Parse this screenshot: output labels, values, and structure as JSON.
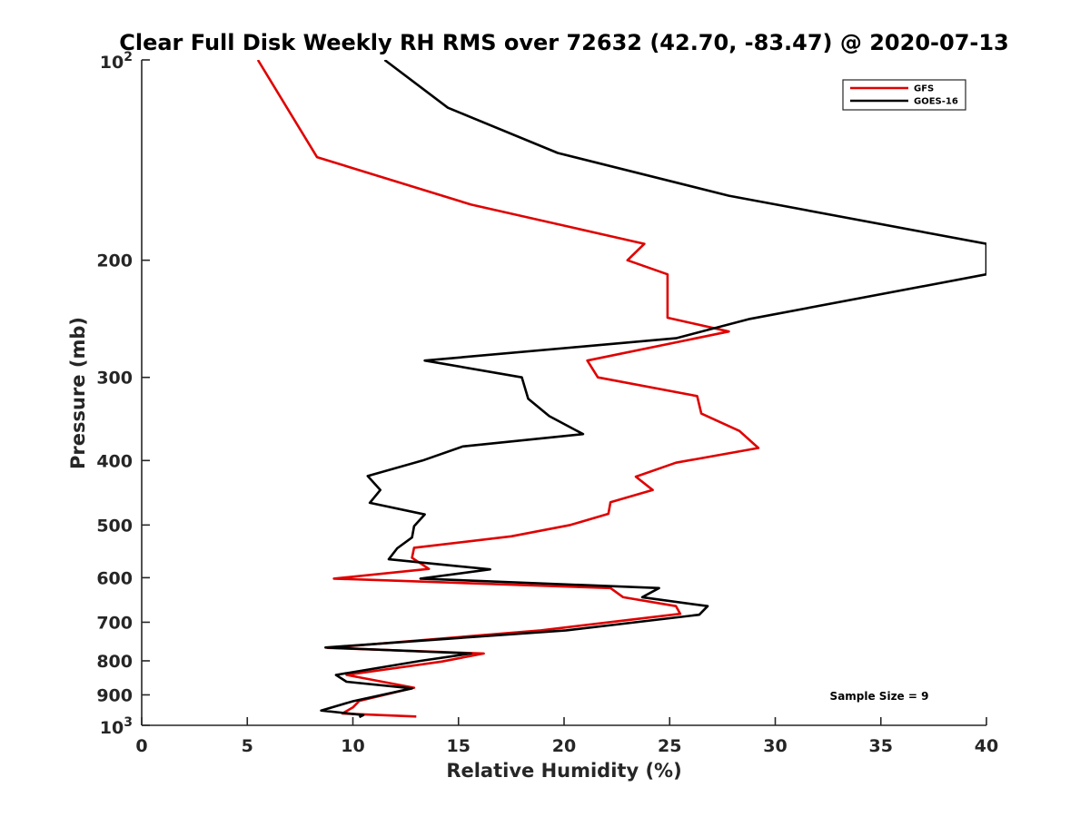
{
  "chart_data": {
    "type": "line",
    "title": "Clear Full Disk Weekly RH RMS over 72632 (42.70, -83.47) @ 2020-07-13",
    "xlabel": "Relative Humidity (%)",
    "ylabel": "Pressure (mb)",
    "xlim": [
      0,
      40
    ],
    "ylim": [
      100,
      1000
    ],
    "yscale": "log",
    "y_reversed": true,
    "x_ticks": [
      0,
      5,
      10,
      15,
      20,
      25,
      30,
      35,
      40
    ],
    "x_tick_labels": [
      "0",
      "5",
      "10",
      "15",
      "20",
      "25",
      "30",
      "35",
      "40"
    ],
    "y_ticks": [
      200,
      300,
      400,
      500,
      600,
      700,
      800,
      900
    ],
    "y_tick_labels": [
      "200",
      "300",
      "400",
      "500",
      "600",
      "700",
      "800",
      "900"
    ],
    "y_decade_ticks": [
      {
        "value": 100,
        "base": "10",
        "exp": "2"
      },
      {
        "value": 1000,
        "base": "10",
        "exp": "3"
      }
    ],
    "grid": false,
    "legend_position": "top-right",
    "annotation": "Sample Size = 9",
    "series": [
      {
        "name": "GFS",
        "color": "#e00000",
        "points": [
          [
            5.5,
            100
          ],
          [
            8.3,
            140
          ],
          [
            15.6,
            165
          ],
          [
            23.8,
            189
          ],
          [
            23.0,
            200
          ],
          [
            24.9,
            210
          ],
          [
            24.9,
            244
          ],
          [
            27.8,
            256
          ],
          [
            21.1,
            283
          ],
          [
            21.6,
            300
          ],
          [
            26.3,
            320
          ],
          [
            26.5,
            340
          ],
          [
            28.3,
            361
          ],
          [
            29.2,
            383
          ],
          [
            25.3,
            403
          ],
          [
            23.4,
            423
          ],
          [
            24.2,
            443
          ],
          [
            22.2,
            462
          ],
          [
            22.1,
            481
          ],
          [
            20.3,
            500
          ],
          [
            17.5,
            520
          ],
          [
            12.9,
            541
          ],
          [
            12.8,
            560
          ],
          [
            13.6,
            582
          ],
          [
            9.1,
            602
          ],
          [
            22.2,
            622
          ],
          [
            22.8,
            642
          ],
          [
            25.3,
            662
          ],
          [
            25.5,
            680
          ],
          [
            18.9,
            720
          ],
          [
            8.8,
            765
          ],
          [
            16.2,
            780
          ],
          [
            14.2,
            802
          ],
          [
            9.7,
            840
          ],
          [
            12.9,
            878
          ],
          [
            10.3,
            919
          ],
          [
            10.0,
            940
          ],
          [
            9.5,
            960
          ],
          [
            13.0,
            970
          ]
        ]
      },
      {
        "name": "GOES-16",
        "color": "#000000",
        "points": [
          [
            11.5,
            100
          ],
          [
            14.5,
            118
          ],
          [
            19.7,
            138
          ],
          [
            27.8,
            160
          ],
          [
            40.0,
            189
          ],
          [
            40.0,
            210
          ],
          [
            28.8,
            245
          ],
          [
            25.3,
            262
          ],
          [
            13.4,
            283
          ],
          [
            18.0,
            300
          ],
          [
            18.3,
            323
          ],
          [
            19.3,
            343
          ],
          [
            20.9,
            365
          ],
          [
            15.2,
            381
          ],
          [
            13.3,
            400
          ],
          [
            10.7,
            422
          ],
          [
            11.3,
            443
          ],
          [
            10.8,
            463
          ],
          [
            13.4,
            482
          ],
          [
            12.9,
            502
          ],
          [
            12.8,
            522
          ],
          [
            12.1,
            542
          ],
          [
            11.7,
            563
          ],
          [
            16.5,
            583
          ],
          [
            13.2,
            602
          ],
          [
            24.5,
            622
          ],
          [
            23.7,
            642
          ],
          [
            26.8,
            662
          ],
          [
            26.4,
            682
          ],
          [
            20.1,
            720
          ],
          [
            8.7,
            764
          ],
          [
            15.6,
            780
          ],
          [
            13.2,
            800
          ],
          [
            9.2,
            840
          ],
          [
            9.7,
            860
          ],
          [
            12.8,
            880
          ],
          [
            10.0,
            920
          ],
          [
            8.5,
            950
          ],
          [
            10.5,
            965
          ],
          [
            10.3,
            972
          ]
        ]
      }
    ]
  }
}
